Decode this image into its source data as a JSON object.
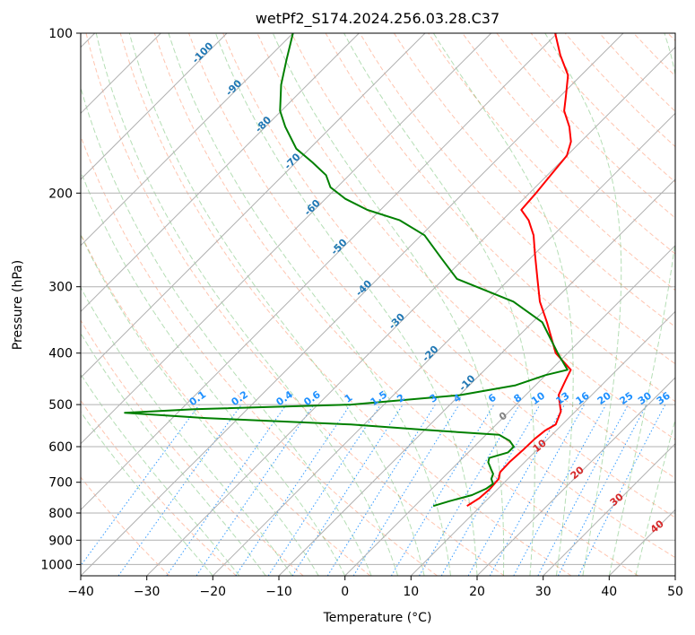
{
  "chart_data": {
    "type": "line",
    "title": "wetPf2_S174.2024.256.03.28.C37",
    "xlabel": "Temperature (°C)",
    "ylabel": "Pressure (hPa)",
    "xlim": [
      -40,
      50
    ],
    "ylim": [
      1050,
      100
    ],
    "y_scale": "log",
    "skew": true,
    "grid": true,
    "x_ticks": [
      -40,
      -30,
      -20,
      -10,
      0,
      10,
      20,
      30,
      40,
      50
    ],
    "y_ticks": [
      100,
      200,
      300,
      400,
      500,
      600,
      700,
      800,
      900,
      1000
    ],
    "colors": {
      "temperature": "#ff0000",
      "dewpoint": "#008000",
      "isotherm_label": "#1f77b4",
      "mixing_ratio": "#1e90ff",
      "dry_adiabat": "#ff7f50",
      "moist_adiabat": "#2ca02c",
      "theta_e_label": "#d62728",
      "grid": "#b0b0b0"
    },
    "series": [
      {
        "key": "temperature",
        "points": [
          [
            776,
            7.9
          ],
          [
            750,
            8.6
          ],
          [
            720,
            8.8
          ],
          [
            690,
            8.6
          ],
          [
            670,
            7.8
          ],
          [
            640,
            7.7
          ],
          [
            610,
            7.9
          ],
          [
            580,
            8.0
          ],
          [
            560,
            8.3
          ],
          [
            545,
            9.0
          ],
          [
            515,
            7.8
          ],
          [
            480,
            5.0
          ],
          [
            450,
            3.8
          ],
          [
            430,
            3.0
          ],
          [
            400,
            -1.8
          ],
          [
            350,
            -7.8
          ],
          [
            320,
            -12.0
          ],
          [
            290,
            -15.8
          ],
          [
            260,
            -20.0
          ],
          [
            240,
            -23.0
          ],
          [
            225,
            -26.0
          ],
          [
            215,
            -28.7
          ],
          [
            200,
            -29.0
          ],
          [
            185,
            -29.5
          ],
          [
            170,
            -30.0
          ],
          [
            160,
            -31.5
          ],
          [
            150,
            -34.0
          ],
          [
            140,
            -37.2
          ],
          [
            132,
            -39.0
          ],
          [
            120,
            -42.0
          ],
          [
            110,
            -46.2
          ],
          [
            100,
            -50.3
          ]
        ]
      },
      {
        "key": "dewpoint",
        "points": [
          [
            776,
            2.8
          ],
          [
            760,
            4.5
          ],
          [
            740,
            7.0
          ],
          [
            720,
            8.2
          ],
          [
            705,
            8.5
          ],
          [
            690,
            7.5
          ],
          [
            675,
            7.0
          ],
          [
            662,
            6.0
          ],
          [
            655,
            5.5
          ],
          [
            642,
            4.5
          ],
          [
            630,
            4.0
          ],
          [
            615,
            6.0
          ],
          [
            600,
            6.0
          ],
          [
            585,
            4.5
          ],
          [
            570,
            2.0
          ],
          [
            558,
            -10.0
          ],
          [
            545,
            -22.0
          ],
          [
            530,
            -45.0
          ],
          [
            518,
            -58.0
          ],
          [
            510,
            -48.0
          ],
          [
            500,
            -25.0
          ],
          [
            480,
            -10.0
          ],
          [
            460,
            -3.0
          ],
          [
            440,
            0.0
          ],
          [
            430,
            2.5
          ],
          [
            400,
            -1.5
          ],
          [
            350,
            -8.5
          ],
          [
            320,
            -16.0
          ],
          [
            290,
            -28.0
          ],
          [
            265,
            -33.5
          ],
          [
            240,
            -39.5
          ],
          [
            225,
            -45.5
          ],
          [
            215,
            -52.0
          ],
          [
            205,
            -57.0
          ],
          [
            195,
            -61.0
          ],
          [
            185,
            -63.5
          ],
          [
            175,
            -67.5
          ],
          [
            165,
            -72.0
          ],
          [
            150,
            -77.0
          ],
          [
            140,
            -80.2
          ],
          [
            125,
            -84.0
          ],
          [
            112,
            -87.0
          ],
          [
            100,
            -90.0
          ]
        ]
      }
    ],
    "isotherm_labels": [
      -100,
      -90,
      -80,
      -70,
      -60,
      -50,
      -40,
      -30,
      -20,
      -10
    ],
    "mixing_ratio_labels": [
      "0.1",
      "0.2",
      "0.4",
      "0.6",
      "1",
      "1.5",
      "2",
      "3",
      "4",
      "6",
      "8",
      "10",
      "13",
      "16",
      "20",
      "25",
      "30",
      "36"
    ],
    "moist_label": "0",
    "theta_e_labels": [
      "10",
      "20",
      "30",
      "40"
    ]
  }
}
